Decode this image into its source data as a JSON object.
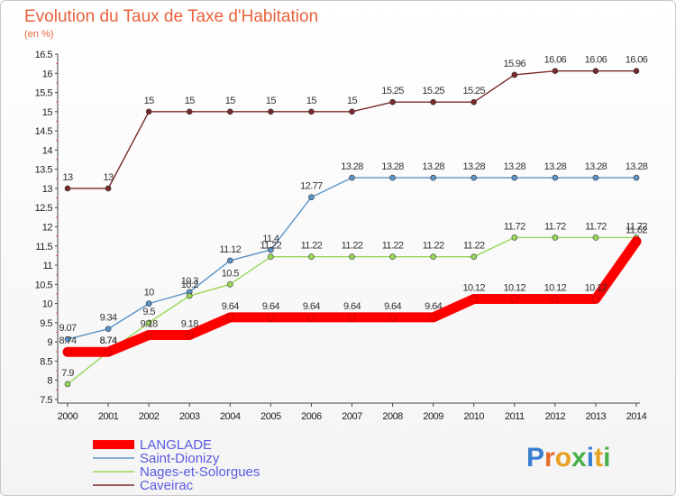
{
  "chart_data": {
    "type": "line",
    "title": "Evolution du Taux de Taxe d'Habitation",
    "subtitle": "(en %)",
    "x": [
      "2000",
      "2001",
      "2002",
      "2003",
      "2004",
      "2005",
      "2006",
      "2007",
      "2008",
      "2009",
      "2010",
      "2011",
      "2012",
      "2013",
      "2014"
    ],
    "ylim": [
      7.5,
      16.5
    ],
    "yticks": [
      "7.5",
      "8",
      "8.5",
      "9",
      "9.5",
      "10",
      "10.5",
      "11",
      "11.5",
      "12",
      "12.5",
      "13",
      "13.5",
      "14",
      "14.5",
      "15",
      "15.5",
      "16",
      "16.5"
    ],
    "grid": false,
    "legend_position": "bottom-left",
    "series": [
      {
        "name": "Caveirac",
        "color": "#7a2a2a",
        "values": [
          13,
          13,
          15,
          15,
          15,
          15,
          15,
          15,
          15.25,
          15.25,
          15.25,
          15.96,
          16.06,
          16.06,
          16.06
        ],
        "labels": [
          "13",
          "13",
          "15",
          "15",
          "15",
          "15",
          "15",
          "15",
          "15.25",
          "15.25",
          "15.25",
          "15.96",
          "16.06",
          "16.06",
          "16.06"
        ]
      },
      {
        "name": "Saint-Dionizy",
        "color": "#5a94c8",
        "values": [
          9.07,
          9.34,
          10,
          10.3,
          11.12,
          11.4,
          12.77,
          13.28,
          13.28,
          13.28,
          13.28,
          13.28,
          13.28,
          13.28,
          13.28
        ],
        "labels": [
          "9.07",
          "9.34",
          "10",
          "10.3",
          "11.12",
          "11.4",
          "12.77",
          "13.28",
          "13.28",
          "13.28",
          "13.28",
          "13.28",
          "13.28",
          "13.28",
          "13.28"
        ]
      },
      {
        "name": "Nages-et-Solorgues",
        "color": "#9ad85a",
        "values": [
          7.9,
          8.74,
          9.5,
          10.2,
          10.5,
          11.22,
          11.22,
          11.22,
          11.22,
          11.22,
          11.22,
          11.72,
          11.72,
          11.72,
          11.72
        ],
        "labels": [
          "7.9",
          "8.74",
          "9.5",
          "10.2",
          "10.5",
          "11.22",
          "11.22",
          "11.22",
          "11.22",
          "11.22",
          "11.22",
          "11.72",
          "11.72",
          "11.72",
          "11.72"
        ]
      },
      {
        "name": "LANGLADE",
        "color": "#ff0000",
        "values": [
          8.74,
          8.74,
          9.18,
          9.18,
          9.64,
          9.64,
          9.64,
          9.64,
          9.64,
          9.64,
          10.12,
          10.12,
          10.12,
          10.12,
          11.62
        ],
        "labels": [
          "8.74",
          "8.74",
          "9.18",
          "9.18",
          "9.64",
          "9.64",
          "9.64",
          "9.64",
          "9.64",
          "9.64",
          "10.12",
          "10.12",
          "10.12",
          "10.12",
          "11.62"
        ]
      }
    ],
    "legend_order": [
      "LANGLADE",
      "Saint-Dionizy",
      "Nages-et-Solorgues",
      "Caveirac"
    ],
    "highlight": "LANGLADE"
  },
  "logo": {
    "text": "Proxiti",
    "colors": [
      "#3a7fd0",
      "#e86a2a",
      "#e8a020",
      "#4ab04a",
      "#3a7fd0",
      "#e8a020",
      "#4ab04a"
    ]
  }
}
